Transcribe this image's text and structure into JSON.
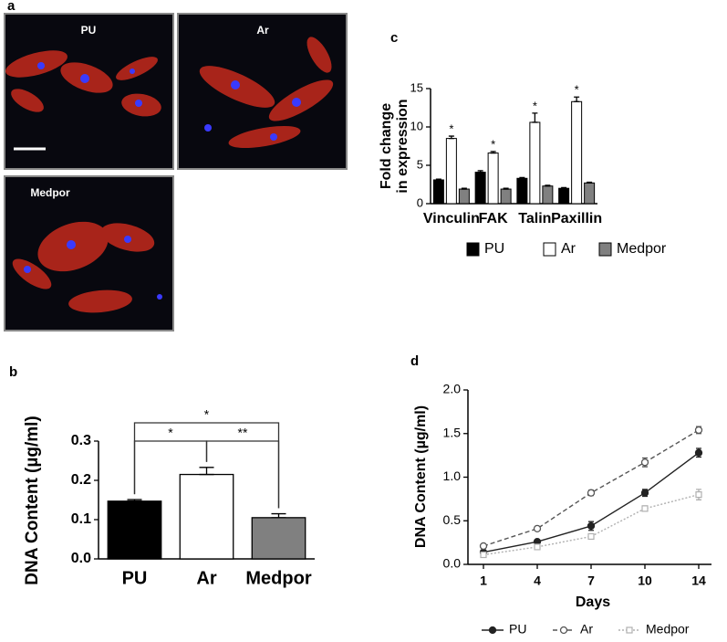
{
  "figure": {
    "panel_a": {
      "label": "a",
      "images": [
        "PU",
        "Ar",
        "Medpor"
      ]
    }
  },
  "chart_data": [
    {
      "panel": "c",
      "type": "bar",
      "ylabel": [
        "Fold change",
        "in expression"
      ],
      "categories": [
        "Vinculin",
        "FAK",
        "Talin",
        "Paxillin"
      ],
      "series": [
        {
          "name": "PU",
          "color": "#000000",
          "values": [
            3.1,
            4.1,
            3.3,
            2.0
          ],
          "errors": [
            0.1,
            0.2,
            0.1,
            0.1
          ]
        },
        {
          "name": "Ar",
          "color": "#ffffff",
          "values": [
            8.5,
            6.6,
            10.6,
            13.3
          ],
          "errors": [
            0.3,
            0.2,
            1.2,
            0.6
          ]
        },
        {
          "name": "Medpor",
          "color": "#808080",
          "values": [
            1.9,
            1.9,
            2.3,
            2.7
          ],
          "errors": [
            0.1,
            0.1,
            0.1,
            0.1
          ]
        }
      ],
      "significance": [
        "*",
        "*",
        "*",
        "*"
      ],
      "ylim": [
        0,
        15
      ],
      "yticks": [
        0,
        5,
        10,
        15
      ]
    },
    {
      "panel": "b",
      "type": "bar",
      "ylabel": "DNA Content (µg/ml)",
      "categories": [
        "PU",
        "Ar",
        "Medpor"
      ],
      "values": [
        0.147,
        0.215,
        0.105
      ],
      "errors": [
        0.004,
        0.018,
        0.01
      ],
      "colors": [
        "#000000",
        "#ffffff",
        "#808080"
      ],
      "comparisons": [
        {
          "pair": [
            0,
            1
          ],
          "label": "*"
        },
        {
          "pair": [
            1,
            2
          ],
          "label": "**"
        },
        {
          "pair": [
            0,
            2
          ],
          "label": "*"
        }
      ],
      "ylim": [
        0,
        0.3
      ],
      "yticks": [
        {
          "value": 0,
          "label": "0.0"
        },
        0.1,
        0.2,
        0.3
      ]
    },
    {
      "panel": "d",
      "type": "line",
      "xlabel": "Days",
      "ylabel": "DNA Content (µg/ml)",
      "categories": [
        "1",
        "4",
        "7",
        "10",
        "14"
      ],
      "series": [
        {
          "name": "PU",
          "color": "#222222",
          "line_style": "solid",
          "marker": "circle",
          "marker_fill": true,
          "values": [
            0.14,
            0.26,
            0.44,
            0.82,
            1.28
          ],
          "errors": [
            0.02,
            0.02,
            0.05,
            0.04,
            0.05
          ]
        },
        {
          "name": "Ar",
          "color": "#555555",
          "line_style": "dashed",
          "marker": "circle",
          "marker_fill": false,
          "values": [
            0.21,
            0.41,
            0.82,
            1.17,
            1.54
          ],
          "errors": [
            0.02,
            0.02,
            0.03,
            0.05,
            0.04
          ]
        },
        {
          "name": "Medpor",
          "color": "#b0b0b0",
          "line_style": "dotted",
          "marker": "square",
          "marker_fill": false,
          "values": [
            0.11,
            0.2,
            0.32,
            0.64,
            0.8
          ],
          "errors": [
            0.02,
            0.02,
            0.02,
            0.03,
            0.06
          ]
        }
      ],
      "ylim": [
        0,
        2
      ],
      "yticks": [
        {
          "value": 0,
          "label": "0.0"
        },
        0.5,
        {
          "value": 1,
          "label": "1.0"
        },
        1.5,
        {
          "value": 2,
          "label": "2.0"
        }
      ]
    }
  ]
}
